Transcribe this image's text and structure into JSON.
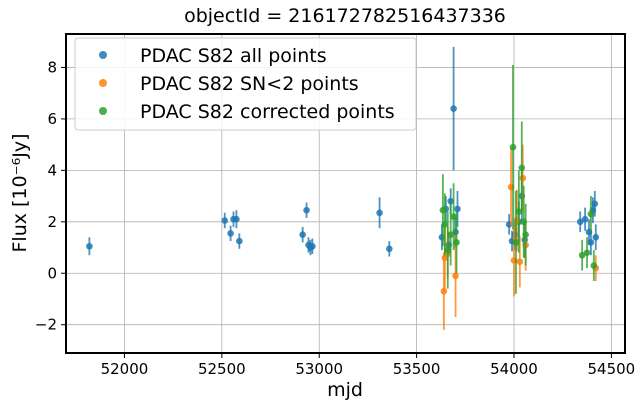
{
  "chart_data": {
    "type": "scatter",
    "title": "objectId = 216172782516437336",
    "xlabel": "mjd",
    "ylabel": "Flux [10⁻⁶Jy]",
    "xlim": [
      51700,
      54570
    ],
    "ylim": [
      -3.1,
      9.3
    ],
    "xticks": [
      52000,
      52500,
      53000,
      53500,
      54000,
      54500
    ],
    "yticks": [
      -2,
      0,
      2,
      4,
      6,
      8
    ],
    "xtick_labels": [
      "52000",
      "52500",
      "53000",
      "53500",
      "54000",
      "54500"
    ],
    "ytick_labels": [
      "−2",
      "0",
      "2",
      "4",
      "6",
      "8"
    ],
    "grid": true,
    "legend_position": "top-left",
    "series": [
      {
        "name": "PDAC S82 all points",
        "color": "#1f77b4",
        "points": [
          {
            "x": 51820,
            "y": 1.05,
            "err": 0.35
          },
          {
            "x": 52515,
            "y": 2.05,
            "err": 0.3
          },
          {
            "x": 52545,
            "y": 1.55,
            "err": 0.3
          },
          {
            "x": 52560,
            "y": 2.1,
            "err": 0.3
          },
          {
            "x": 52575,
            "y": 2.1,
            "err": 0.35
          },
          {
            "x": 52590,
            "y": 1.25,
            "err": 0.3
          },
          {
            "x": 52915,
            "y": 1.5,
            "err": 0.3
          },
          {
            "x": 52935,
            "y": 2.45,
            "err": 0.3
          },
          {
            "x": 52945,
            "y": 1.1,
            "err": 0.3
          },
          {
            "x": 52955,
            "y": 1.0,
            "err": 0.3
          },
          {
            "x": 52965,
            "y": 1.05,
            "err": 0.3
          },
          {
            "x": 53310,
            "y": 2.35,
            "err": 0.6
          },
          {
            "x": 53360,
            "y": 0.95,
            "err": 0.3
          },
          {
            "x": 53630,
            "y": 1.4,
            "err": 0.5
          },
          {
            "x": 53650,
            "y": 2.5,
            "err": 0.5
          },
          {
            "x": 53665,
            "y": 1.1,
            "err": 0.45
          },
          {
            "x": 53675,
            "y": 2.8,
            "err": 0.5
          },
          {
            "x": 53690,
            "y": 6.4,
            "err": 2.4
          },
          {
            "x": 53700,
            "y": 1.6,
            "err": 0.6
          },
          {
            "x": 53710,
            "y": 2.5,
            "err": 0.7
          },
          {
            "x": 53975,
            "y": 1.9,
            "err": 0.4
          },
          {
            "x": 53990,
            "y": 1.25,
            "err": 0.4
          },
          {
            "x": 54005,
            "y": 1.5,
            "err": 0.6
          },
          {
            "x": 54025,
            "y": 2.0,
            "err": 0.8
          },
          {
            "x": 54040,
            "y": 3.0,
            "err": 1.0
          },
          {
            "x": 54055,
            "y": 1.3,
            "err": 0.7
          },
          {
            "x": 54340,
            "y": 2.0,
            "err": 0.4
          },
          {
            "x": 54365,
            "y": 2.1,
            "err": 0.45
          },
          {
            "x": 54385,
            "y": 1.6,
            "err": 0.5
          },
          {
            "x": 54395,
            "y": 1.2,
            "err": 0.5
          },
          {
            "x": 54405,
            "y": 2.45,
            "err": 0.5
          },
          {
            "x": 54415,
            "y": 2.7,
            "err": 0.5
          },
          {
            "x": 54420,
            "y": 1.4,
            "err": 0.5
          }
        ]
      },
      {
        "name": "PDAC S82 SN<2 points",
        "color": "#ff7f0e",
        "points": [
          {
            "x": 53640,
            "y": -0.7,
            "err": 1.5
          },
          {
            "x": 53645,
            "y": 0.6,
            "err": 1.2
          },
          {
            "x": 53660,
            "y": 0.8,
            "err": 1.0
          },
          {
            "x": 53700,
            "y": -0.1,
            "err": 1.6
          },
          {
            "x": 53985,
            "y": 3.35,
            "err": 1.5
          },
          {
            "x": 54000,
            "y": 0.5,
            "err": 1.4
          },
          {
            "x": 54015,
            "y": 2.05,
            "err": 1.2
          },
          {
            "x": 54030,
            "y": 0.45,
            "err": 1.0
          },
          {
            "x": 54045,
            "y": 3.7,
            "err": 1.3
          },
          {
            "x": 54060,
            "y": 1.1,
            "err": 1.0
          },
          {
            "x": 54420,
            "y": 0.2,
            "err": 0.5
          }
        ]
      },
      {
        "name": "PDAC S82 corrected points",
        "color": "#2ca02c",
        "points": [
          {
            "x": 53635,
            "y": 2.45,
            "err": 1.4
          },
          {
            "x": 53645,
            "y": 1.9,
            "err": 1.2
          },
          {
            "x": 53660,
            "y": 0.9,
            "err": 1.5
          },
          {
            "x": 53675,
            "y": 1.5,
            "err": 1.2
          },
          {
            "x": 53690,
            "y": 2.2,
            "err": 1.3
          },
          {
            "x": 53705,
            "y": 1.2,
            "err": 1.2
          },
          {
            "x": 53995,
            "y": 4.9,
            "err": 3.2
          },
          {
            "x": 54010,
            "y": 1.2,
            "err": 2.0
          },
          {
            "x": 54025,
            "y": 2.4,
            "err": 1.6
          },
          {
            "x": 54040,
            "y": 4.1,
            "err": 1.8
          },
          {
            "x": 54050,
            "y": 2.0,
            "err": 1.4
          },
          {
            "x": 54060,
            "y": 1.5,
            "err": 1.2
          },
          {
            "x": 54350,
            "y": 0.7,
            "err": 0.6
          },
          {
            "x": 54375,
            "y": 0.8,
            "err": 0.6
          },
          {
            "x": 54395,
            "y": 2.3,
            "err": 0.7
          },
          {
            "x": 54410,
            "y": 0.3,
            "err": 0.6
          }
        ]
      }
    ]
  }
}
